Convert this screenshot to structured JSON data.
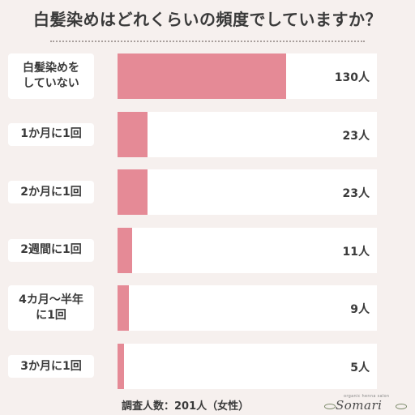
{
  "chart_data": {
    "type": "bar",
    "orientation": "horizontal",
    "title": "白髪染めはどれくらいの頻度でしていますか？",
    "categories": [
      "白髪染めを\nしていない",
      "1か月に1回",
      "2か月に1回",
      "2週間に1回",
      "4カ月〜半年\nに1回",
      "3か月に1回"
    ],
    "values": [
      130,
      23,
      23,
      11,
      9,
      5
    ],
    "value_labels": [
      "130人",
      "23人",
      "23人",
      "11人",
      "9人",
      "5人"
    ],
    "xlim": [
      0,
      200
    ],
    "grid": false,
    "colors": {
      "bar": "#e58a96",
      "track": "#ffffff",
      "background": "#f6f0ee"
    }
  },
  "footer": {
    "note": "調査人数：201人（女性）"
  },
  "logo": {
    "tagline": "organic henna salon",
    "name": "Somari"
  }
}
